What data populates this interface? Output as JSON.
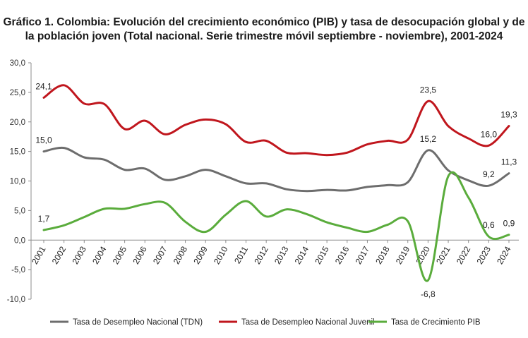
{
  "title_line1": "Gráfico 1. Colombia: Evolución del crecimiento económico (PIB) y tasa de desocupación global y de",
  "title_line2": "la población joven (Total nacional. Serie trimestre móvil septiembre - noviembre), 2001-2024",
  "chart_data": {
    "type": "line",
    "title": "Gráfico 1. Colombia: Evolución del crecimiento económico (PIB) y tasa de desocupación global y de la población joven (Total nacional. Serie trimestre móvil septiembre - noviembre), 2001-2024",
    "xlabel": "",
    "ylabel": "",
    "ylim": [
      -10,
      30
    ],
    "yticks": [
      "30,0",
      "25,0",
      "20,0",
      "15,0",
      "10,0",
      "5,0",
      "0,0",
      "-5,0",
      "-10,0"
    ],
    "ytick_values": [
      30,
      25,
      20,
      15,
      10,
      5,
      0,
      -5,
      -10
    ],
    "grid": false,
    "legend_position": "bottom",
    "categories": [
      "2001",
      "2002",
      "2003",
      "2004",
      "2005",
      "2006",
      "2007",
      "2008",
      "2009",
      "2010",
      "2011",
      "2012",
      "2013",
      "2014",
      "2015",
      "2016",
      "2017",
      "2018",
      "2019",
      "2020",
      "2021",
      "2022",
      "2023",
      "2024"
    ],
    "series": [
      {
        "name": "Tasa de Desempleo Nacional (TDN)",
        "color": "#6d6d6d",
        "values": [
          15.0,
          15.6,
          14.0,
          13.6,
          11.9,
          12.1,
          10.2,
          10.8,
          11.9,
          10.8,
          9.6,
          9.6,
          8.6,
          8.3,
          8.5,
          8.4,
          9.0,
          9.3,
          9.8,
          15.2,
          11.8,
          10.1,
          9.2,
          11.3
        ]
      },
      {
        "name": "Tasa de Desempleo Nacional Juvenil",
        "color": "#c0161d",
        "values": [
          24.1,
          26.2,
          23.1,
          23.0,
          18.8,
          20.2,
          17.9,
          19.5,
          20.4,
          19.6,
          16.6,
          16.8,
          14.8,
          14.7,
          14.4,
          14.8,
          16.2,
          16.8,
          17.0,
          23.5,
          19.3,
          17.2,
          16.0,
          19.3
        ]
      },
      {
        "name": "Tasa de Crecimiento PIB",
        "color": "#5aac3c",
        "values": [
          1.7,
          2.5,
          3.9,
          5.3,
          5.3,
          6.1,
          6.3,
          3.1,
          1.4,
          4.3,
          6.6,
          4.0,
          5.2,
          4.4,
          3.0,
          2.1,
          1.4,
          2.6,
          3.2,
          -6.8,
          10.8,
          7.2,
          0.6,
          0.9
        ]
      }
    ],
    "annotations": [
      {
        "series": 1,
        "index": 0,
        "text": "24,1"
      },
      {
        "series": 0,
        "index": 0,
        "text": "15,0"
      },
      {
        "series": 2,
        "index": 0,
        "text": "1,7"
      },
      {
        "series": 1,
        "index": 19,
        "text": "23,5"
      },
      {
        "series": 0,
        "index": 19,
        "text": "15,2"
      },
      {
        "series": 2,
        "index": 19,
        "text": "-6,8"
      },
      {
        "series": 1,
        "index": 22,
        "text": "16,0"
      },
      {
        "series": 0,
        "index": 22,
        "text": "9,2"
      },
      {
        "series": 2,
        "index": 22,
        "text": "0,6"
      },
      {
        "series": 1,
        "index": 23,
        "text": "19,3"
      },
      {
        "series": 0,
        "index": 23,
        "text": "11,3"
      },
      {
        "series": 2,
        "index": 23,
        "text": "0,9"
      }
    ]
  }
}
